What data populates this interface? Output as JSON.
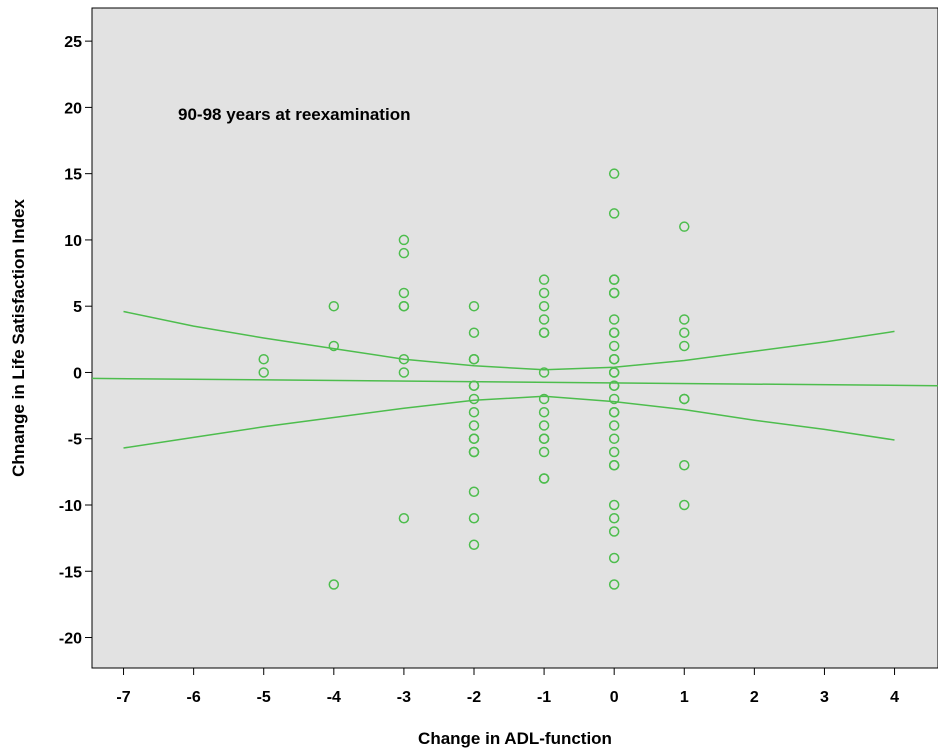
{
  "chart_data": {
    "type": "scatter",
    "title": "",
    "annotation": "90-98 years at reexamination",
    "xlabel": "Change in ADL-function",
    "ylabel": "Chnange in Life Satisfaction Index",
    "xlim": [
      -7.45,
      4.62
    ],
    "ylim": [
      -22.3,
      27.5
    ],
    "xticks": [
      -7,
      -6,
      -5,
      -4,
      -3,
      -2,
      -1,
      0,
      1,
      2,
      3,
      4
    ],
    "yticks": [
      -20,
      -15,
      -10,
      -5,
      0,
      5,
      10,
      15,
      20,
      25
    ],
    "grid": false,
    "background_color": "#e2e2e2",
    "marker_color": "#4dbd4d",
    "line_color": "#4dbd4d",
    "points": [
      {
        "x": -5,
        "y": 1
      },
      {
        "x": -5,
        "y": 0
      },
      {
        "x": -4,
        "y": 5
      },
      {
        "x": -4,
        "y": 2
      },
      {
        "x": -4,
        "y": -16
      },
      {
        "x": -3,
        "y": 10
      },
      {
        "x": -3,
        "y": 9
      },
      {
        "x": -3,
        "y": 6
      },
      {
        "x": -3,
        "y": 5
      },
      {
        "x": -3,
        "y": 5
      },
      {
        "x": -3,
        "y": 1
      },
      {
        "x": -3,
        "y": 0
      },
      {
        "x": -3,
        "y": -11
      },
      {
        "x": -2,
        "y": 5
      },
      {
        "x": -2,
        "y": 3
      },
      {
        "x": -2,
        "y": 1
      },
      {
        "x": -2,
        "y": 1
      },
      {
        "x": -2,
        "y": -1
      },
      {
        "x": -2,
        "y": -1
      },
      {
        "x": -2,
        "y": -2
      },
      {
        "x": -2,
        "y": -3
      },
      {
        "x": -2,
        "y": -4
      },
      {
        "x": -2,
        "y": -5
      },
      {
        "x": -2,
        "y": -5
      },
      {
        "x": -2,
        "y": -6
      },
      {
        "x": -2,
        "y": -6
      },
      {
        "x": -2,
        "y": -9
      },
      {
        "x": -2,
        "y": -11
      },
      {
        "x": -2,
        "y": -13
      },
      {
        "x": -1,
        "y": 7
      },
      {
        "x": -1,
        "y": 6
      },
      {
        "x": -1,
        "y": 5
      },
      {
        "x": -1,
        "y": 4
      },
      {
        "x": -1,
        "y": 3
      },
      {
        "x": -1,
        "y": 3
      },
      {
        "x": -1,
        "y": 0
      },
      {
        "x": -1,
        "y": -2
      },
      {
        "x": -1,
        "y": -3
      },
      {
        "x": -1,
        "y": -4
      },
      {
        "x": -1,
        "y": -5
      },
      {
        "x": -1,
        "y": -5
      },
      {
        "x": -1,
        "y": -6
      },
      {
        "x": -1,
        "y": -8
      },
      {
        "x": -1,
        "y": -8
      },
      {
        "x": 0,
        "y": 15
      },
      {
        "x": 0,
        "y": 12
      },
      {
        "x": 0,
        "y": 7
      },
      {
        "x": 0,
        "y": 7
      },
      {
        "x": 0,
        "y": 6
      },
      {
        "x": 0,
        "y": 6
      },
      {
        "x": 0,
        "y": 4
      },
      {
        "x": 0,
        "y": 3
      },
      {
        "x": 0,
        "y": 3
      },
      {
        "x": 0,
        "y": 2
      },
      {
        "x": 0,
        "y": 1
      },
      {
        "x": 0,
        "y": 1
      },
      {
        "x": 0,
        "y": 0
      },
      {
        "x": 0,
        "y": 0
      },
      {
        "x": 0,
        "y": -1
      },
      {
        "x": 0,
        "y": -1
      },
      {
        "x": 0,
        "y": -2
      },
      {
        "x": 0,
        "y": -3
      },
      {
        "x": 0,
        "y": -3
      },
      {
        "x": 0,
        "y": -4
      },
      {
        "x": 0,
        "y": -5
      },
      {
        "x": 0,
        "y": -6
      },
      {
        "x": 0,
        "y": -7
      },
      {
        "x": 0,
        "y": -7
      },
      {
        "x": 0,
        "y": -10
      },
      {
        "x": 0,
        "y": -11
      },
      {
        "x": 0,
        "y": -12
      },
      {
        "x": 0,
        "y": -14
      },
      {
        "x": 0,
        "y": -16
      },
      {
        "x": 1,
        "y": 11
      },
      {
        "x": 1,
        "y": 4
      },
      {
        "x": 1,
        "y": 3
      },
      {
        "x": 1,
        "y": 2
      },
      {
        "x": 1,
        "y": -2
      },
      {
        "x": 1,
        "y": -2
      },
      {
        "x": 1,
        "y": -7
      },
      {
        "x": 1,
        "y": -10
      }
    ],
    "fit_line": [
      [
        -7.45,
        -0.45
      ],
      [
        4.62,
        -1.0
      ]
    ],
    "ci_upper": [
      [
        -7,
        4.6
      ],
      [
        -6,
        3.5
      ],
      [
        -5,
        2.6
      ],
      [
        -4,
        1.8
      ],
      [
        -3,
        1.0
      ],
      [
        -2,
        0.5
      ],
      [
        -1,
        0.2
      ],
      [
        0,
        0.4
      ],
      [
        1,
        0.9
      ],
      [
        2,
        1.6
      ],
      [
        3,
        2.3
      ],
      [
        4,
        3.1
      ]
    ],
    "ci_lower": [
      [
        -7,
        -5.7
      ],
      [
        -6,
        -4.9
      ],
      [
        -5,
        -4.1
      ],
      [
        -4,
        -3.4
      ],
      [
        -3,
        -2.7
      ],
      [
        -2,
        -2.1
      ],
      [
        -1,
        -1.8
      ],
      [
        0,
        -2.2
      ],
      [
        1,
        -2.8
      ],
      [
        2,
        -3.6
      ],
      [
        3,
        -4.3
      ],
      [
        4,
        -5.1
      ]
    ]
  }
}
